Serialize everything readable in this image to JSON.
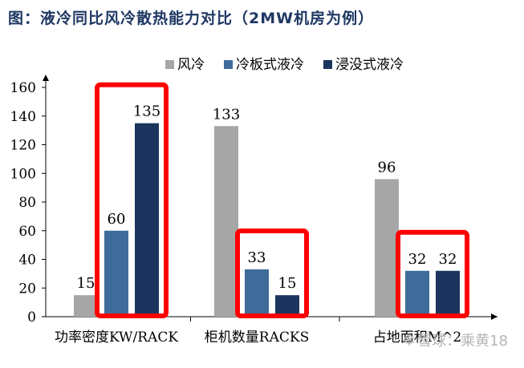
{
  "title": "图：液冷同比风冷散热能力对比（2MW机房为例）",
  "watermark": "雪球：乘黄18",
  "chart_data": {
    "type": "bar",
    "categories": [
      "功率密度KW/RACK",
      "柜机数量RACKS",
      "占地面积M^2"
    ],
    "series": [
      {
        "name": "风冷",
        "color": "#a6a6a6",
        "values": [
          15,
          133,
          96
        ]
      },
      {
        "name": "冷板式液冷",
        "color": "#3e6b9a",
        "values": [
          60,
          33,
          32
        ]
      },
      {
        "name": "浸没式液冷",
        "color": "#1c355e",
        "values": [
          135,
          15,
          32
        ]
      }
    ],
    "y_ticks": [
      0,
      20,
      40,
      60,
      80,
      100,
      120,
      140,
      160
    ],
    "ylim": [
      0,
      160
    ],
    "legend_position": "top-right",
    "grid": false,
    "highlight_color": "#ff0000",
    "highlights": [
      {
        "category": "功率密度KW/RACK",
        "series": [
          "冷板式液冷",
          "浸没式液冷"
        ]
      },
      {
        "category": "柜机数量RACKS",
        "series": [
          "冷板式液冷",
          "浸没式液冷"
        ]
      },
      {
        "category": "占地面积M^2",
        "series": [
          "冷板式液冷",
          "浸没式液冷"
        ]
      }
    ]
  }
}
